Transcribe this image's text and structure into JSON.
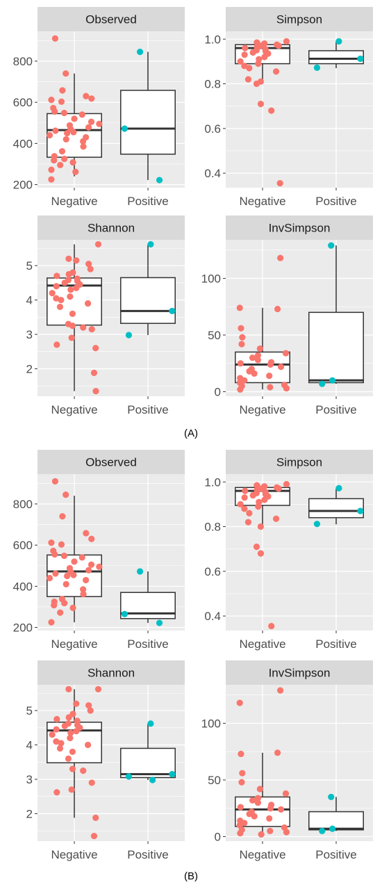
{
  "figure": {
    "panel_labels": [
      "(A)",
      "(B)"
    ]
  },
  "colors": {
    "negative": "#F8766D",
    "positive": "#00BFC4",
    "panel_bg": "#EBEBEB",
    "strip_bg": "#D9D9D9",
    "grid": "#FFFFFF",
    "tick_text": "#4D4D4D",
    "strip_text": "#1A1A1A",
    "box_line": "#333333"
  },
  "chart_data": [
    {
      "id": "A-observed",
      "panel": "A",
      "type": "box",
      "title": "Observed",
      "categories": [
        "Negative",
        "Positive"
      ],
      "ylim": [
        185,
        945
      ],
      "yticks": [
        200,
        400,
        600,
        800
      ],
      "series": [
        {
          "name": "Negative",
          "box": {
            "q1": 333,
            "median": 465,
            "q3": 545,
            "lower": 240,
            "upper": 740
          },
          "points": [
            910,
            740,
            658,
            630,
            618,
            612,
            603,
            572,
            555,
            548,
            540,
            520,
            505,
            495,
            488,
            478,
            470,
            462,
            455,
            450,
            440,
            430,
            420,
            410,
            385,
            362,
            338,
            325,
            318,
            308,
            295,
            272,
            262,
            225
          ]
        },
        {
          "name": "Positive",
          "box": {
            "q1": 348,
            "median": 472,
            "q3": 658,
            "lower": 222,
            "upper": 845
          },
          "points": [
            845,
            472,
            222
          ]
        }
      ]
    },
    {
      "id": "A-simpson",
      "panel": "A",
      "type": "box",
      "title": "Simpson",
      "categories": [
        "Negative",
        "Positive"
      ],
      "ylim": [
        0.335,
        1.035
      ],
      "yticks": [
        0.4,
        0.6,
        0.8,
        1.0
      ],
      "series": [
        {
          "name": "Negative",
          "box": {
            "q1": 0.89,
            "median": 0.96,
            "q3": 0.975,
            "lower": 0.8,
            "upper": 0.99
          },
          "points": [
            0.99,
            0.985,
            0.98,
            0.975,
            0.97,
            0.97,
            0.965,
            0.96,
            0.955,
            0.95,
            0.945,
            0.94,
            0.935,
            0.93,
            0.92,
            0.91,
            0.9,
            0.89,
            0.88,
            0.87,
            0.855,
            0.82,
            0.81,
            0.8,
            0.71,
            0.68,
            0.355
          ]
        },
        {
          "name": "Positive",
          "box": {
            "q1": 0.89,
            "median": 0.912,
            "q3": 0.948,
            "lower": 0.87,
            "upper": 0.99
          },
          "points": [
            0.99,
            0.912,
            0.872
          ]
        }
      ]
    },
    {
      "id": "A-shannon",
      "panel": "A",
      "type": "box",
      "title": "Shannon",
      "categories": [
        "Negative",
        "Positive"
      ],
      "ylim": [
        1.2,
        5.75
      ],
      "yticks": [
        2,
        3,
        4,
        5
      ],
      "series": [
        {
          "name": "Negative",
          "box": {
            "q1": 3.27,
            "median": 4.42,
            "q3": 4.64,
            "lower": 1.35,
            "upper": 5.62
          },
          "points": [
            5.62,
            5.2,
            5.15,
            5.05,
            4.9,
            4.8,
            4.75,
            4.7,
            4.62,
            4.58,
            4.55,
            4.5,
            4.45,
            4.4,
            4.35,
            4.3,
            4.2,
            4.1,
            4.05,
            4.0,
            3.9,
            3.8,
            3.6,
            3.3,
            3.25,
            3.2,
            3.15,
            2.9,
            2.7,
            2.6,
            1.88,
            1.35
          ]
        },
        {
          "name": "Positive",
          "box": {
            "q1": 3.32,
            "median": 3.68,
            "q3": 4.65,
            "lower": 2.98,
            "upper": 5.62
          },
          "points": [
            5.62,
            3.68,
            2.98
          ]
        }
      ]
    },
    {
      "id": "A-invsimpson",
      "panel": "A",
      "type": "box",
      "title": "InvSimpson",
      "categories": [
        "Negative",
        "Positive"
      ],
      "ylim": [
        -4,
        134
      ],
      "yticks": [
        0,
        50,
        100
      ],
      "series": [
        {
          "name": "Negative",
          "box": {
            "q1": 8,
            "median": 24,
            "q3": 35,
            "lower": 2,
            "upper": 74
          },
          "points": [
            118,
            74,
            73,
            56,
            48,
            42,
            38,
            34,
            32,
            30,
            28,
            26,
            25,
            24,
            22,
            20,
            18,
            16,
            14,
            12,
            10,
            8,
            6,
            5,
            4,
            3,
            2
          ]
        },
        {
          "name": "Positive",
          "box": {
            "q1": 8,
            "median": 10,
            "q3": 70,
            "lower": 7,
            "upper": 129
          },
          "points": [
            129,
            10,
            7
          ]
        }
      ]
    },
    {
      "id": "B-observed",
      "panel": "B",
      "type": "box",
      "title": "Observed",
      "categories": [
        "Negative",
        "Positive"
      ],
      "ylim": [
        185,
        945
      ],
      "yticks": [
        200,
        400,
        600,
        800
      ],
      "series": [
        {
          "name": "Negative",
          "box": {
            "q1": 350,
            "median": 472,
            "q3": 552,
            "lower": 225,
            "upper": 840
          },
          "points": [
            910,
            845,
            740,
            658,
            630,
            612,
            603,
            572,
            555,
            548,
            540,
            520,
            505,
            495,
            488,
            478,
            470,
            462,
            455,
            450,
            440,
            430,
            410,
            385,
            362,
            338,
            325,
            318,
            308,
            295,
            272,
            225
          ]
        },
        {
          "name": "Positive",
          "box": {
            "q1": 243,
            "median": 268,
            "q3": 370,
            "lower": 222,
            "upper": 472
          },
          "points": [
            472,
            265,
            222
          ]
        }
      ]
    },
    {
      "id": "B-simpson",
      "panel": "B",
      "type": "box",
      "title": "Simpson",
      "categories": [
        "Negative",
        "Positive"
      ],
      "ylim": [
        0.335,
        1.035
      ],
      "yticks": [
        0.4,
        0.6,
        0.8,
        1.0
      ],
      "series": [
        {
          "name": "Negative",
          "box": {
            "q1": 0.895,
            "median": 0.96,
            "q3": 0.975,
            "lower": 0.8,
            "upper": 0.99
          },
          "points": [
            0.99,
            0.985,
            0.98,
            0.975,
            0.97,
            0.97,
            0.965,
            0.96,
            0.955,
            0.95,
            0.945,
            0.94,
            0.935,
            0.93,
            0.92,
            0.91,
            0.9,
            0.89,
            0.88,
            0.86,
            0.835,
            0.82,
            0.8,
            0.71,
            0.68,
            0.355
          ]
        },
        {
          "name": "Positive",
          "box": {
            "q1": 0.84,
            "median": 0.87,
            "q3": 0.925,
            "lower": 0.81,
            "upper": 0.97
          },
          "points": [
            0.972,
            0.87,
            0.812
          ]
        }
      ]
    },
    {
      "id": "B-shannon",
      "panel": "B",
      "type": "box",
      "title": "Shannon",
      "categories": [
        "Negative",
        "Positive"
      ],
      "ylim": [
        1.2,
        5.75
      ],
      "yticks": [
        2,
        3,
        4,
        5
      ],
      "series": [
        {
          "name": "Negative",
          "box": {
            "q1": 3.48,
            "median": 4.42,
            "q3": 4.66,
            "lower": 1.88,
            "upper": 5.62
          },
          "points": [
            5.62,
            5.62,
            5.2,
            5.15,
            5.0,
            4.9,
            4.8,
            4.75,
            4.7,
            4.62,
            4.58,
            4.55,
            4.5,
            4.45,
            4.4,
            4.35,
            4.3,
            4.2,
            4.1,
            4.05,
            4.0,
            3.9,
            3.8,
            3.6,
            3.3,
            3.25,
            2.9,
            2.7,
            2.62,
            1.88,
            1.35
          ]
        },
        {
          "name": "Positive",
          "box": {
            "q1": 3.05,
            "median": 3.15,
            "q3": 3.9,
            "lower": 2.98,
            "upper": 4.62
          },
          "points": [
            4.62,
            3.15,
            3.08,
            2.98
          ]
        }
      ]
    },
    {
      "id": "B-invsimpson",
      "panel": "B",
      "type": "box",
      "title": "InvSimpson",
      "categories": [
        "Negative",
        "Positive"
      ],
      "ylim": [
        -4,
        134
      ],
      "yticks": [
        0,
        50,
        100
      ],
      "series": [
        {
          "name": "Negative",
          "box": {
            "q1": 9,
            "median": 24,
            "q3": 35,
            "lower": 2,
            "upper": 74
          },
          "points": [
            129,
            118,
            74,
            73,
            56,
            48,
            42,
            38,
            34,
            32,
            30,
            28,
            26,
            25,
            24,
            22,
            20,
            18,
            16,
            14,
            12,
            10,
            8,
            6,
            5,
            4,
            3,
            2
          ]
        },
        {
          "name": "Positive",
          "box": {
            "q1": 6,
            "median": 7,
            "q3": 22,
            "lower": 5,
            "upper": 35
          },
          "points": [
            35,
            7,
            5
          ]
        }
      ]
    }
  ]
}
